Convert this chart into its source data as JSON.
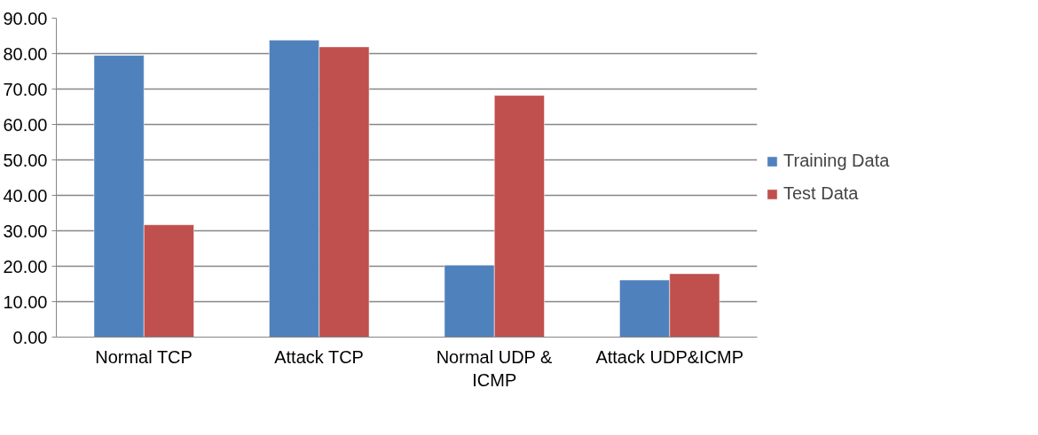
{
  "chart_data": {
    "type": "bar",
    "categories": [
      "Normal TCP",
      "Attack TCP",
      "Normal UDP & ICMP",
      "Attack UDP&ICMP"
    ],
    "series": [
      {
        "name": "Training Data",
        "color": "#4f81bd",
        "values": [
          79.5,
          83.8,
          20.3,
          16.1
        ]
      },
      {
        "name": "Test Data",
        "color": "#c0504d",
        "values": [
          31.7,
          81.9,
          68.2,
          17.9
        ]
      }
    ],
    "ylim": [
      0,
      90
    ],
    "yticks": [
      {
        "value": 0,
        "label": "0.00"
      },
      {
        "value": 10,
        "label": "10.00"
      },
      {
        "value": 20,
        "label": "20.00"
      },
      {
        "value": 30,
        "label": "30.00"
      },
      {
        "value": 40,
        "label": "40.00"
      },
      {
        "value": 50,
        "label": "50.00"
      },
      {
        "value": 60,
        "label": "60.00"
      },
      {
        "value": 70,
        "label": "70.00"
      },
      {
        "value": 80,
        "label": "80.00"
      },
      {
        "value": 90,
        "label": "90.00"
      }
    ],
    "grid": "y",
    "legend": "right"
  }
}
